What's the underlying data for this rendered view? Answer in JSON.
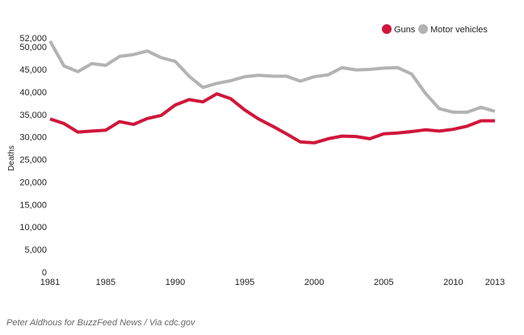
{
  "chart_data": {
    "type": "line",
    "title": "",
    "xlabel": "",
    "ylabel": "Deaths",
    "x": [
      1981,
      1982,
      1983,
      1984,
      1985,
      1986,
      1987,
      1988,
      1989,
      1990,
      1991,
      1992,
      1993,
      1994,
      1995,
      1996,
      1997,
      1998,
      1999,
      2000,
      2001,
      2002,
      2003,
      2004,
      2005,
      2006,
      2007,
      2008,
      2009,
      2010,
      2011,
      2012,
      2013
    ],
    "xlim": [
      1981,
      2013
    ],
    "ylim": [
      0,
      52000
    ],
    "xticks": [
      1981,
      1985,
      1990,
      1995,
      2000,
      2005,
      2010,
      2013
    ],
    "xtick_labels": [
      "1981",
      "1985",
      "1990",
      "1995",
      "2000",
      "2005",
      "2010",
      "2013"
    ],
    "yticks": [
      0,
      5000,
      10000,
      15000,
      20000,
      25000,
      30000,
      35000,
      40000,
      45000,
      50000,
      52000
    ],
    "ytick_labels": [
      "0",
      "5,000",
      "10,000",
      "15,000",
      "20,000",
      "25,000",
      "30,000",
      "35,000",
      "40,000",
      "45,000",
      "50,000",
      "52,000"
    ],
    "grid": false,
    "legend_position": "top-right",
    "series": [
      {
        "name": "Guns",
        "color": "#d0163b",
        "values": [
          34000,
          33000,
          31100,
          31300,
          31500,
          33400,
          32800,
          34100,
          34800,
          37100,
          38300,
          37800,
          39600,
          38500,
          36000,
          34000,
          32400,
          30700,
          28900,
          28700,
          29600,
          30200,
          30100,
          29600,
          30700,
          30900,
          31200,
          31600,
          31300,
          31700,
          32400,
          33600,
          33600
        ]
      },
      {
        "name": "Motor vehicles",
        "color": "#b3b3b3",
        "values": [
          51300,
          45800,
          44500,
          46300,
          45900,
          47900,
          48300,
          49100,
          47600,
          46800,
          43500,
          41000,
          41900,
          42500,
          43400,
          43700,
          43500,
          43500,
          42400,
          43400,
          43800,
          45400,
          44900,
          45000,
          45300,
          45400,
          44000,
          39700,
          36300,
          35500,
          35500,
          36600,
          35700
        ]
      }
    ]
  },
  "source_note": "Peter Aldhous for BuzzFeed News / Via cdc.gov"
}
